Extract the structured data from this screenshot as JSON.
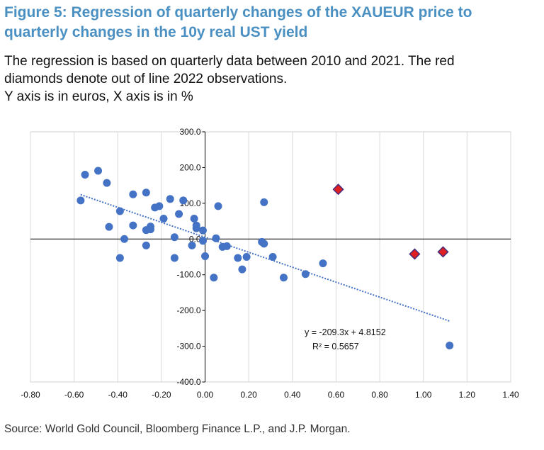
{
  "title": "Figure 5: Regression of quarterly changes of the XAUEUR price to quarterly changes in the 10y real UST yield",
  "description": [
    "The regression is based on quarterly data between 2010 and 2021. The red",
    "diamonds denote out of line 2022 observations.",
    "Y axis is in euros, X axis is in %"
  ],
  "source": "Source: World Gold Council, Bloomberg Finance L.P., and J.P. Morgan.",
  "chart_data": {
    "type": "scatter",
    "title": "",
    "xlabel": "",
    "ylabel": "",
    "xlim": [
      -0.8,
      1.4
    ],
    "ylim": [
      -400,
      300
    ],
    "x_ticks": [
      -0.8,
      -0.6,
      -0.4,
      -0.2,
      0.0,
      0.2,
      0.4,
      0.6,
      0.8,
      1.0,
      1.2,
      1.4
    ],
    "x_tick_labels": [
      "-0.80",
      "-0.60",
      "-0.40",
      "-0.20",
      "0.00",
      "0.20",
      "0.40",
      "0.60",
      "0.80",
      "1.00",
      "1.20",
      "1.40"
    ],
    "y_ticks": [
      -400,
      -300,
      -200,
      -100,
      0,
      100,
      200,
      300
    ],
    "y_tick_labels": [
      "-400.0",
      "-300.0",
      "-200.0",
      "-100.0",
      "0.0",
      "100.0",
      "200.0",
      "300.0"
    ],
    "series": [
      {
        "name": "2010-2021 quarterly observations",
        "marker": "circle",
        "color": "#4472c4",
        "points": [
          [
            -0.57,
            108
          ],
          [
            -0.55,
            180
          ],
          [
            -0.49,
            191
          ],
          [
            -0.45,
            157
          ],
          [
            -0.44,
            34
          ],
          [
            -0.39,
            78
          ],
          [
            -0.39,
            -53
          ],
          [
            -0.37,
            0
          ],
          [
            -0.33,
            38
          ],
          [
            -0.33,
            125
          ],
          [
            -0.27,
            130
          ],
          [
            -0.27,
            25
          ],
          [
            -0.27,
            -18
          ],
          [
            -0.25,
            35
          ],
          [
            -0.25,
            27
          ],
          [
            -0.23,
            88
          ],
          [
            -0.21,
            92
          ],
          [
            -0.19,
            57
          ],
          [
            -0.16,
            112
          ],
          [
            -0.14,
            -53
          ],
          [
            -0.14,
            5
          ],
          [
            -0.12,
            70
          ],
          [
            -0.1,
            108
          ],
          [
            -0.06,
            -18
          ],
          [
            -0.05,
            57
          ],
          [
            -0.04,
            38
          ],
          [
            -0.04,
            30
          ],
          [
            -0.01,
            24
          ],
          [
            -0.01,
            -5
          ],
          [
            0.0,
            -48
          ],
          [
            0.04,
            -108
          ],
          [
            0.05,
            2
          ],
          [
            0.06,
            92
          ],
          [
            0.08,
            -22
          ],
          [
            0.1,
            -20
          ],
          [
            0.15,
            -53
          ],
          [
            0.17,
            -85
          ],
          [
            0.19,
            -50
          ],
          [
            0.26,
            -8
          ],
          [
            0.27,
            -13
          ],
          [
            0.27,
            103
          ],
          [
            0.31,
            -50
          ],
          [
            0.36,
            -108
          ],
          [
            0.46,
            -98
          ],
          [
            0.54,
            -68
          ],
          [
            1.12,
            -298
          ]
        ]
      },
      {
        "name": "2022 out-of-line observations",
        "marker": "diamond",
        "color": "#e02020",
        "points": [
          [
            0.61,
            139
          ],
          [
            0.96,
            -42
          ],
          [
            1.09,
            -36
          ]
        ]
      }
    ],
    "trendline": {
      "type": "linear",
      "slope": -209.3,
      "intercept": 4.8152,
      "x_range": [
        -0.57,
        1.12
      ],
      "color": "#4472c4",
      "equation_label": "y = -209.3x + 4.8152",
      "r2_label": "R² = 0.5657"
    }
  }
}
